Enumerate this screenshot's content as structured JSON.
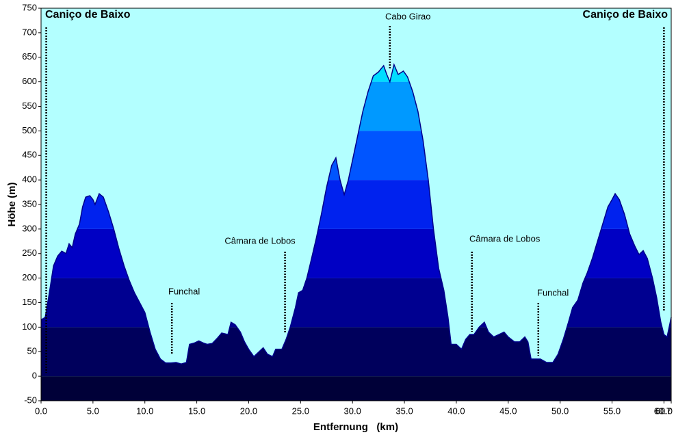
{
  "chart_data": {
    "type": "area",
    "xlabel": "Entfernung   (km)",
    "ylabel": "Höhe (m)",
    "xlim": [
      0,
      60.7
    ],
    "ylim": [
      -50,
      750
    ],
    "xticks": [
      {
        "value": 0,
        "label": "0.0"
      },
      {
        "value": 5,
        "label": "5.0"
      },
      {
        "value": 10,
        "label": "10.0"
      },
      {
        "value": 15,
        "label": "15.0"
      },
      {
        "value": 20,
        "label": "20.0"
      },
      {
        "value": 25,
        "label": "25.0"
      },
      {
        "value": 30,
        "label": "30.0"
      },
      {
        "value": 35,
        "label": "35.0"
      },
      {
        "value": 40,
        "label": "40.0"
      },
      {
        "value": 45,
        "label": "45.0"
      },
      {
        "value": 50,
        "label": "50.0"
      },
      {
        "value": 55,
        "label": "55.0"
      },
      {
        "value": 60,
        "label": "60.0"
      },
      60.7
    ],
    "yticks": [
      -50,
      0,
      50,
      100,
      150,
      200,
      250,
      300,
      350,
      400,
      450,
      500,
      550,
      600,
      650,
      700,
      750
    ],
    "background": "#b3ffff",
    "bands": [
      {
        "from": -50,
        "color": "#000038"
      },
      {
        "from": 0,
        "color": "#00005c"
      },
      {
        "from": 100,
        "color": "#000090"
      },
      {
        "from": 200,
        "color": "#0000c4"
      },
      {
        "from": 300,
        "color": "#0022ee"
      },
      {
        "from": 400,
        "color": "#0055ff"
      },
      {
        "from": 500,
        "color": "#0099ff"
      },
      {
        "from": 600,
        "color": "#00ddff"
      }
    ],
    "series": [
      {
        "x": [
          0.0,
          0.4,
          0.8,
          1.2,
          1.6,
          2.0,
          2.4,
          2.7,
          3.0,
          3.3,
          3.7,
          4.0,
          4.3,
          4.7,
          5.0,
          5.2,
          5.6,
          6.0,
          6.5,
          7.0,
          7.5,
          8.0,
          8.5,
          9.0,
          9.5,
          10.0,
          10.5,
          11.0,
          11.5,
          12.0,
          12.5,
          13.0,
          13.5,
          14.0,
          14.3,
          14.8,
          15.2,
          15.6,
          16.0,
          16.5,
          17.0,
          17.4,
          18.0,
          18.3,
          18.7,
          19.2,
          19.6,
          20.0,
          20.5,
          21.0,
          21.4,
          21.8,
          22.3,
          22.6,
          23.2,
          23.6,
          24.0,
          24.5,
          24.8,
          25.2,
          25.6,
          26.0,
          26.5,
          27.0,
          27.5,
          28.0,
          28.4,
          28.8,
          29.2,
          29.6,
          30.0,
          30.5,
          31.0,
          31.5,
          32.0,
          32.5,
          33.0,
          33.3,
          33.6,
          34.0,
          34.4,
          34.9,
          35.3,
          35.8,
          36.3,
          36.8,
          37.3,
          37.8,
          38.3,
          38.8,
          39.2,
          39.5,
          40.0,
          40.5,
          40.9,
          41.3,
          41.7,
          42.2,
          42.7,
          43.1,
          43.6,
          44.1,
          44.6,
          45.0,
          45.6,
          46.1,
          46.6,
          46.9,
          47.2,
          47.7,
          48.1,
          48.7,
          49.3,
          49.8,
          50.3,
          50.8,
          51.2,
          51.7,
          52.2,
          52.6,
          53.1,
          53.6,
          54.1,
          54.6,
          55.0,
          55.3,
          55.7,
          56.2,
          56.7,
          57.2,
          57.6,
          58.0,
          58.4,
          58.9,
          59.3,
          59.7,
          60.0,
          60.3,
          60.7
        ],
        "values": [
          115,
          120,
          170,
          225,
          245,
          255,
          250,
          270,
          262,
          290,
          310,
          345,
          365,
          368,
          360,
          350,
          372,
          365,
          335,
          300,
          260,
          225,
          195,
          170,
          150,
          130,
          90,
          55,
          35,
          27,
          27,
          28,
          25,
          28,
          65,
          68,
          72,
          68,
          65,
          67,
          78,
          88,
          85,
          110,
          105,
          90,
          70,
          55,
          40,
          50,
          58,
          45,
          40,
          55,
          55,
          75,
          100,
          140,
          170,
          175,
          200,
          235,
          280,
          330,
          385,
          430,
          445,
          400,
          370,
          400,
          440,
          490,
          540,
          580,
          612,
          620,
          633,
          615,
          600,
          635,
          615,
          622,
          610,
          580,
          540,
          480,
          400,
          300,
          220,
          175,
          120,
          65,
          65,
          55,
          75,
          85,
          85,
          100,
          110,
          90,
          80,
          85,
          90,
          80,
          70,
          70,
          80,
          70,
          35,
          35,
          35,
          28,
          28,
          45,
          75,
          110,
          140,
          155,
          190,
          210,
          240,
          275,
          310,
          345,
          360,
          372,
          360,
          330,
          290,
          265,
          248,
          256,
          240,
          200,
          160,
          110,
          85,
          80,
          120
        ],
        "color": "#00008b"
      }
    ],
    "annotations": [
      {
        "text": "Caniço de Baixo",
        "x": 0.5
      },
      {
        "text": "Funchal",
        "x": 12.6
      },
      {
        "text": "Câmara de Lobos",
        "x": 23.5
      },
      {
        "text": "Cabo Girao",
        "x": 33.6
      },
      {
        "text": "Câmara de Lobos",
        "x": 41.5
      },
      {
        "text": "Funchal",
        "x": 47.9
      },
      {
        "text": "Caniço de Baixo",
        "x": 60.0
      }
    ]
  }
}
